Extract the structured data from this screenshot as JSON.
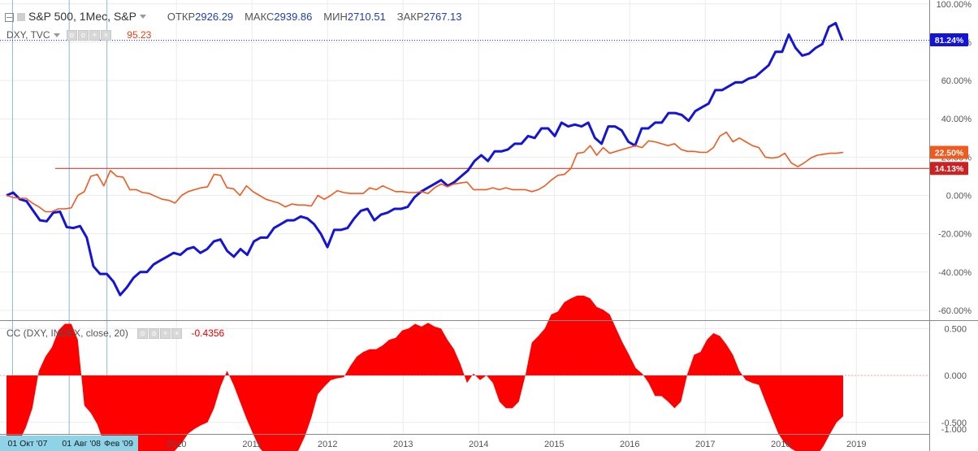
{
  "legend": {
    "symbol": "S&P 500, 1Мес, S&P",
    "open_label": "ОТКР",
    "open": "2926.29",
    "high_label": "МАКС",
    "high": "2939.86",
    "low_label": "МИН",
    "low": "2710.51",
    "close_label": "ЗАКР",
    "close": "2767.13",
    "compare_symbol": "DXY, TVC",
    "compare_value": "95.23",
    "indicator": "CC (DXY, INDEX, close, 20)",
    "indicator_value": "-0.4356"
  },
  "colors": {
    "spx": "#1414d8",
    "dxy": "#f05a1e",
    "cc": "#ff0000",
    "hline": "#cc2222",
    "vline": "#8ab8d8",
    "grid": "#ececec"
  },
  "chart_data": [
    {
      "type": "line",
      "name": "main",
      "y_axis_labels": [
        "100.00%",
        "80.00%",
        "60.00%",
        "40.00%",
        "20.00%",
        "0.00%",
        "-20.00%",
        "-40.00%",
        "-60.00%"
      ],
      "ylim": [
        -62,
        101
      ],
      "x_axis_labels": [
        "2010",
        "2011",
        "2012",
        "2013",
        "2014",
        "2015",
        "2016",
        "2017",
        "2018",
        "2019"
      ],
      "date_markers": [
        "01 Окт '07",
        "01 Авг '08",
        "Фев '09"
      ],
      "price_tags": [
        {
          "value": 81.24,
          "text": "81.24%",
          "color": "#1414d8"
        },
        {
          "value": 22.5,
          "text": "22.50%",
          "color": "#f05a1e"
        },
        {
          "value": 14.13,
          "text": "14.13%",
          "color": "#cc2222"
        }
      ],
      "hline": 14.13,
      "x_start": 2007.75,
      "series": [
        {
          "key": "spx",
          "values": [
            0,
            1.5,
            -2,
            -3,
            -8,
            -13,
            -13.5,
            -9,
            -8.5,
            -16.5,
            -17,
            -16,
            -22,
            -37,
            -41,
            -41,
            -45,
            -52,
            -48,
            -43,
            -40,
            -40,
            -36,
            -34,
            -32,
            -30,
            -31,
            -28,
            -27,
            -30,
            -28,
            -24,
            -23,
            -29,
            -32,
            -28,
            -31,
            -24,
            -22,
            -22,
            -17,
            -15,
            -13,
            -13,
            -11,
            -12,
            -15,
            -20,
            -27,
            -18,
            -18,
            -17,
            -12,
            -8,
            -7,
            -13,
            -10,
            -9,
            -7,
            -7,
            -6,
            -1,
            2,
            4,
            6,
            8,
            5,
            7,
            10,
            13,
            18,
            21,
            18,
            23,
            23,
            24,
            27,
            27,
            31,
            30,
            35,
            35,
            31,
            38,
            36,
            37,
            36,
            38,
            30,
            27,
            36,
            36,
            34,
            28,
            26,
            35,
            35,
            38,
            38,
            43,
            43,
            42,
            39,
            44,
            46,
            48,
            55,
            55,
            57,
            59,
            59,
            61,
            62,
            65,
            68,
            75,
            75,
            84,
            77,
            73,
            74,
            77,
            79,
            88,
            90,
            81
          ]
        },
        {
          "key": "dxy",
          "values": [
            0,
            -1,
            -1.5,
            -1.5,
            -4,
            -6,
            -8.5,
            -8.5,
            -7,
            -7,
            -6.5,
            0,
            2,
            10,
            11,
            5,
            13,
            10,
            9.5,
            3,
            3,
            1.5,
            1,
            -0.5,
            -2,
            -2.5,
            -4,
            0,
            2,
            3,
            4,
            4.5,
            11,
            10.5,
            4,
            3.5,
            0,
            5,
            2,
            0,
            -2,
            -3,
            -4,
            -6,
            -4.5,
            -5,
            -5,
            -5.5,
            0,
            -2,
            0,
            2.5,
            1.5,
            1,
            1,
            1,
            4,
            3,
            5,
            3.5,
            2,
            2,
            1.5,
            1.5,
            2,
            1,
            4,
            6,
            4.5,
            6,
            6.5,
            7,
            3,
            3,
            3,
            4,
            3,
            4,
            3,
            3,
            3,
            2,
            3,
            5,
            8,
            10.5,
            11,
            14,
            22,
            22.5,
            26,
            21,
            25,
            22,
            23,
            24,
            25,
            26,
            25,
            28.5,
            28,
            27,
            26,
            27,
            24,
            23,
            23,
            22.5,
            22.5,
            25,
            31,
            33,
            28,
            30,
            28,
            26,
            25,
            20,
            19.5,
            20,
            22,
            17,
            15,
            17,
            19.5,
            21,
            21.5,
            22,
            22,
            22.5
          ]
        }
      ]
    },
    {
      "type": "area",
      "name": "correlation",
      "y_axis_labels": [
        "0.500",
        "0.000",
        "-0.500",
        "-1.000"
      ],
      "ylim": [
        -1.05,
        0.85
      ],
      "x_start": 2007.75,
      "values": [
        -0.78,
        -0.75,
        -0.7,
        -0.55,
        -0.35,
        0.05,
        0.2,
        0.3,
        0.48,
        0.55,
        0.55,
        0.38,
        -0.32,
        -0.4,
        -0.52,
        -0.72,
        -0.82,
        -0.85,
        -0.88,
        -0.9,
        -0.92,
        -0.93,
        -0.92,
        -0.9,
        -0.88,
        -0.85,
        -0.8,
        -0.72,
        -0.62,
        -0.57,
        -0.53,
        -0.5,
        -0.35,
        -0.12,
        0.05,
        -0.1,
        -0.28,
        -0.46,
        -0.62,
        -0.77,
        -0.85,
        -0.86,
        -0.86,
        -0.86,
        -0.85,
        -0.8,
        -0.65,
        -0.45,
        -0.2,
        -0.12,
        -0.05,
        -0.03,
        -0.02,
        0.1,
        0.2,
        0.25,
        0.28,
        0.28,
        0.32,
        0.38,
        0.4,
        0.48,
        0.5,
        0.55,
        0.52,
        0.56,
        0.52,
        0.5,
        0.38,
        0.28,
        0.12,
        -0.08,
        0.02,
        -0.05,
        0.0,
        -0.08,
        -0.28,
        -0.35,
        -0.35,
        -0.28,
        0.0,
        0.35,
        0.42,
        0.5,
        0.65,
        0.68,
        0.78,
        0.82,
        0.85,
        0.85,
        0.82,
        0.73,
        0.7,
        0.65,
        0.5,
        0.35,
        0.22,
        0.08,
        0.02,
        -0.08,
        -0.22,
        -0.22,
        -0.28,
        -0.35,
        -0.28,
        0.02,
        0.22,
        0.25,
        0.38,
        0.45,
        0.42,
        0.33,
        0.22,
        0.05,
        -0.05,
        -0.08,
        -0.1,
        -0.28,
        -0.45,
        -0.62,
        -0.72,
        -0.78,
        -0.82,
        -0.85,
        -0.87,
        -0.85,
        -0.75,
        -0.62,
        -0.5,
        -0.4356
      ]
    }
  ]
}
